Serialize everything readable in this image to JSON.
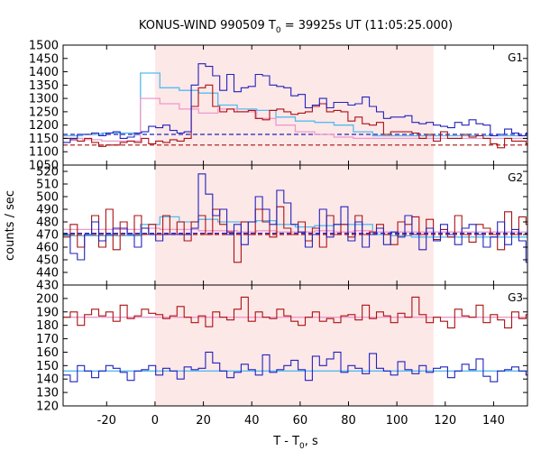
{
  "chart_data": {
    "type": "line",
    "title": "KONUS-WIND 990509 T",
    "title_sub": "0",
    "title_rest": " = 39925s UT (11:05:25.000)",
    "xlabel": "T - T",
    "xlabel_sub": "0",
    "xlabel_rest": ", s",
    "ylabel": "counts / sec",
    "xlim": [
      -38,
      154
    ],
    "xticks": [
      -20,
      0,
      20,
      40,
      60,
      80,
      100,
      120,
      140
    ],
    "highlight": {
      "x0": 0,
      "x1": 115.2,
      "color": "#fde8e8"
    },
    "panels": [
      {
        "label": "G1",
        "ylim": [
          1050,
          1500
        ],
        "yticks": [
          1050,
          1100,
          1150,
          1200,
          1250,
          1300,
          1350,
          1400,
          1450,
          1500
        ],
        "series": [
          {
            "color": "#2222bb",
            "step": 2.944,
            "x0": -38,
            "values": [
              1135,
              1150,
              1165,
              1165,
              1170,
              1160,
              1170,
              1175,
              1150,
              1155,
              1170,
              1175,
              1195,
              1190,
              1200,
              1180,
              1170,
              1175,
              1350,
              1430,
              1420,
              1385,
              1330,
              1390,
              1325,
              1340,
              1345,
              1390,
              1385,
              1350,
              1345,
              1340,
              1310,
              1315,
              1265,
              1275,
              1300,
              1265,
              1285,
              1285,
              1275,
              1280,
              1305,
              1270,
              1250,
              1225,
              1230,
              1230,
              1235,
              1210,
              1205,
              1210,
              1200,
              1195,
              1190,
              1210,
              1200,
              1220,
              1205,
              1200,
              1160,
              1165,
              1185,
              1170,
              1160,
              1170,
              1185,
              1160,
              1150,
              1165
            ]
          },
          {
            "color": "#aa1111",
            "step": 2.944,
            "x0": -38,
            "values": [
              1150,
              1145,
              1140,
              1150,
              1135,
              1120,
              1125,
              1125,
              1135,
              1140,
              1135,
              1150,
              1130,
              1140,
              1135,
              1145,
              1140,
              1150,
              1270,
              1340,
              1350,
              1270,
              1250,
              1260,
              1250,
              1250,
              1255,
              1225,
              1220,
              1255,
              1260,
              1250,
              1240,
              1245,
              1250,
              1270,
              1280,
              1250,
              1255,
              1250,
              1215,
              1230,
              1205,
              1200,
              1210,
              1165,
              1175,
              1175,
              1175,
              1170,
              1150,
              1165,
              1140,
              1175,
              1150,
              1150,
              1165,
              1155,
              1160,
              1150,
              1130,
              1115,
              1150,
              1140,
              1140,
              1130,
              1145,
              1160,
              1140,
              1140
            ]
          },
          {
            "color": "#55bbee",
            "step": 8,
            "x0": -38,
            "values": [
              1160,
              1165,
              1170,
              1170,
              1395,
              1340,
              1330,
              1320,
              1275,
              1260,
              1255,
              1230,
              1215,
              1210,
              1200,
              1175,
              1160,
              1160,
              1160,
              1160,
              1160,
              1160,
              1160,
              1160
            ]
          },
          {
            "color": "#ee99cc",
            "step": 8,
            "x0": -38,
            "values": [
              1150,
              1145,
              1140,
              1140,
              1300,
              1280,
              1260,
              1245,
              1260,
              1250,
              1225,
              1200,
              1175,
              1165,
              1155,
              1150,
              1150,
              1150,
              1150,
              1150,
              1150,
              1150,
              1150,
              1150
            ]
          }
        ],
        "baselines": [
          {
            "value": 1165,
            "color": "#2222bb"
          },
          {
            "value": 1125,
            "color": "#aa1111"
          }
        ]
      },
      {
        "label": "G2",
        "ylim": [
          430,
          525
        ],
        "yticks": [
          430,
          440,
          450,
          460,
          470,
          480,
          490,
          500,
          510,
          520
        ],
        "series": [
          {
            "color": "#2222bb",
            "step": 2.944,
            "x0": -38,
            "values": [
              470,
              455,
              450,
              470,
              480,
              465,
              470,
              475,
              475,
              470,
              460,
              475,
              470,
              465,
              470,
              470,
              470,
              470,
              475,
              518,
              502,
              485,
              490,
              470,
              478,
              462,
              480,
              500,
              490,
              478,
              505,
              495,
              478,
              472,
              460,
              470,
              490,
              468,
              478,
              492,
              465,
              480,
              460,
              470,
              475,
              462,
              472,
              468,
              485,
              470,
              458,
              475,
              465,
              478,
              470,
              462,
              475,
              478,
              470,
              460,
              468,
              480,
              462,
              474,
              465,
              448,
              470,
              474,
              468,
              472
            ]
          },
          {
            "color": "#aa1111",
            "step": 2.944,
            "x0": -38,
            "values": [
              468,
              478,
              460,
              470,
              485,
              460,
              490,
              458,
              480,
              470,
              485,
              470,
              478,
              470,
              485,
              470,
              480,
              465,
              480,
              485,
              470,
              490,
              478,
              472,
              448,
              480,
              470,
              490,
              480,
              468,
              492,
              475,
              470,
              480,
              465,
              475,
              460,
              485,
              470,
              478,
              468,
              485,
              470,
              472,
              478,
              470,
              462,
              480,
              478,
              484,
              470,
              482,
              466,
              474,
              468,
              485,
              470,
              464,
              478,
              475,
              470,
              458,
              488,
              470,
              484,
              478,
              470,
              462,
              470,
              490
            ]
          },
          {
            "color": "#55bbee",
            "step": 8,
            "x0": -38,
            "values": [
              469,
              469,
              469,
              469,
              478,
              484,
              480,
              482,
              480,
              480,
              481,
              478,
              476,
              477,
              478,
              478,
              470,
              469,
              468,
              468,
              468,
              468,
              468,
              468
            ]
          },
          {
            "color": "#ee99cc",
            "step": 8,
            "x0": -38,
            "values": [
              474,
              474,
              474,
              474,
              475,
              474,
              474,
              473,
              473,
              472,
              473,
              472,
              472,
              473,
              472,
              473,
              472,
              472,
              472,
              472,
              472,
              472,
              472,
              472
            ]
          }
        ],
        "baselines": [
          {
            "value": 471,
            "color": "#2222bb"
          },
          {
            "value": 470,
            "color": "#aa1111"
          }
        ]
      },
      {
        "label": "G3",
        "ylim": [
          120,
          210
        ],
        "yticks": [
          120,
          130,
          140,
          150,
          160,
          170,
          180,
          190,
          200
        ],
        "series": [
          {
            "color": "#2222bb",
            "step": 2.944,
            "x0": -38,
            "values": [
              143,
              138,
              150,
              146,
              141,
              146,
              150,
              148,
              145,
              139,
              146,
              147,
              150,
              143,
              148,
              146,
              140,
              149,
              147,
              148,
              160,
              152,
              146,
              141,
              145,
              151,
              147,
              143,
              158,
              145,
              147,
              150,
              154,
              147,
              139,
              157,
              150,
              155,
              160,
              145,
              150,
              148,
              144,
              159,
              148,
              146,
              143,
              153,
              147,
              144,
              150,
              145,
              148,
              149,
              141,
              146,
              151,
              147,
              155,
              142,
              138,
              146,
              147,
              149,
              146,
              143,
              148,
              145,
              150,
              146
            ]
          },
          {
            "color": "#aa1111",
            "step": 2.944,
            "x0": -38,
            "values": [
              186,
              190,
              180,
              188,
              192,
              187,
              190,
              183,
              195,
              185,
              187,
              192,
              189,
              188,
              185,
              187,
              194,
              186,
              182,
              187,
              179,
              190,
              186,
              184,
              192,
              201,
              183,
              190,
              186,
              185,
              192,
              187,
              183,
              180,
              186,
              190,
              183,
              185,
              182,
              187,
              188,
              184,
              195,
              185,
              190,
              187,
              182,
              189,
              186,
              201,
              188,
              182,
              186,
              183,
              178,
              192,
              187,
              186,
              195,
              182,
              188,
              184,
              178,
              190,
              185,
              188,
              182,
              186,
              190,
              178
            ]
          },
          {
            "color": "#55bbee",
            "step": 8,
            "x0": -38,
            "values": [
              146,
              146,
              146,
              146,
              146,
              146,
              146,
              146,
              146,
              146,
              146,
              146,
              146,
              146,
              146,
              146,
              146,
              146,
              146,
              146,
              146,
              146,
              146,
              146
            ]
          },
          {
            "color": "#ee99cc",
            "step": 8,
            "x0": -38,
            "values": [
              186,
              186,
              186,
              186,
              186,
              186,
              186,
              186,
              186,
              186,
              186,
              186,
              186,
              186,
              186,
              186,
              186,
              186,
              186,
              186,
              186,
              186,
              186,
              186
            ]
          }
        ],
        "baselines": []
      }
    ]
  }
}
